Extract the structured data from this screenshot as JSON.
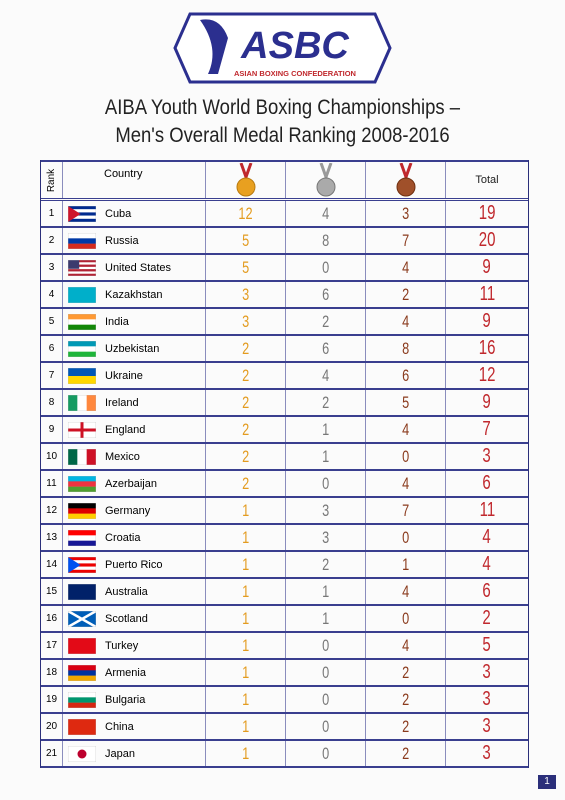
{
  "logo": {
    "text": "ASBC",
    "subtitle": "ASIAN BOXING CONFEDERATION"
  },
  "title": [
    "AIBA Youth World Boxing Championships –",
    "Men's Overall Medal Ranking 2008-2016"
  ],
  "table": {
    "header": {
      "rank": "Rank",
      "country": "Country",
      "total": "Total"
    },
    "rows": [
      [
        1,
        "Cuba",
        12,
        4,
        3,
        19
      ],
      [
        2,
        "Russia",
        5,
        8,
        7,
        20
      ],
      [
        3,
        "United States",
        5,
        0,
        4,
        9
      ],
      [
        4,
        "Kazakhstan",
        3,
        6,
        2,
        11
      ],
      [
        5,
        "India",
        3,
        2,
        4,
        9
      ],
      [
        6,
        "Uzbekistan",
        2,
        6,
        8,
        16
      ],
      [
        7,
        "Ukraine",
        2,
        4,
        6,
        12
      ],
      [
        8,
        "Ireland",
        2,
        2,
        5,
        9
      ],
      [
        9,
        "England",
        2,
        1,
        4,
        7
      ],
      [
        10,
        "Mexico",
        2,
        1,
        0,
        3
      ],
      [
        11,
        "Azerbaijan",
        2,
        0,
        4,
        6
      ],
      [
        12,
        "Germany",
        1,
        3,
        7,
        11
      ],
      [
        13,
        "Croatia",
        1,
        3,
        0,
        4
      ],
      [
        14,
        "Puerto Rico",
        1,
        2,
        1,
        4
      ],
      [
        15,
        "Australia",
        1,
        1,
        4,
        6
      ],
      [
        16,
        "Scotland",
        1,
        1,
        0,
        2
      ],
      [
        17,
        "Turkey",
        1,
        0,
        4,
        5
      ],
      [
        18,
        "Armenia",
        1,
        0,
        2,
        3
      ],
      [
        19,
        "Bulgaria",
        1,
        0,
        2,
        3
      ],
      [
        20,
        "China",
        1,
        0,
        2,
        3
      ],
      [
        21,
        "Japan",
        1,
        0,
        2,
        3
      ]
    ]
  },
  "page_number": 1
}
